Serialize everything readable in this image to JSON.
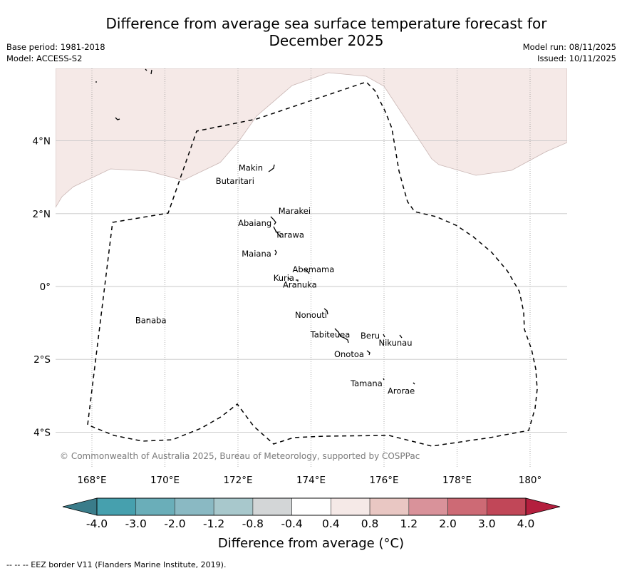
{
  "header": {
    "title_line1": "Difference from average sea surface temperature forecast for",
    "title_line2": "December 2025",
    "base_period": "Base period: 1981-2018",
    "model": "Model: ACCESS-S2",
    "model_run": "Model run: 08/11/2025",
    "issued": "Issued: 10/11/2025"
  },
  "map": {
    "lon_ticks": [
      "168°E",
      "170°E",
      "172°E",
      "174°E",
      "176°E",
      "178°E",
      "180°"
    ],
    "lat_ticks": [
      "4°N",
      "2°N",
      "0°",
      "2°S",
      "4°S"
    ],
    "copyright": "© Commonwealth of Australia 2025, Bureau of Meteorology, supported by COSPPac",
    "anomaly_region_color": "#f5e9e7",
    "anomaly_region_class": "0.4 to 0.8",
    "islands": [
      {
        "name": "Makin",
        "lon": 172.7,
        "lat": 3.2
      },
      {
        "name": "Butaritari",
        "lon": 172.6,
        "lat": 2.9
      },
      {
        "name": "Marakei",
        "lon": 173.4,
        "lat": 2.0
      },
      {
        "name": "Abaiang",
        "lon": 172.9,
        "lat": 1.7
      },
      {
        "name": "Tarawa",
        "lon": 173.2,
        "lat": 1.4
      },
      {
        "name": "Maiana",
        "lon": 173.0,
        "lat": 0.9
      },
      {
        "name": "Abemama",
        "lon": 174.0,
        "lat": 0.35
      },
      {
        "name": "Kuria",
        "lon": 173.4,
        "lat": 0.2
      },
      {
        "name": "Aranuka",
        "lon": 173.6,
        "lat": 0.15
      },
      {
        "name": "Banaba",
        "lon": 169.5,
        "lat": -0.85
      },
      {
        "name": "Nonouti",
        "lon": 174.4,
        "lat": -0.7
      },
      {
        "name": "Tabiteuea",
        "lon": 174.9,
        "lat": -1.3
      },
      {
        "name": "Beru",
        "lon": 176.0,
        "lat": -1.35
      },
      {
        "name": "Nikunau",
        "lon": 176.4,
        "lat": -1.35
      },
      {
        "name": "Onotoa",
        "lon": 175.55,
        "lat": -1.8
      },
      {
        "name": "Tamana",
        "lon": 176.0,
        "lat": -2.5
      },
      {
        "name": "Arorae",
        "lon": 176.8,
        "lat": -2.65
      }
    ]
  },
  "colorbar": {
    "title": "Difference from average (°C)",
    "ticks": [
      "-4.0",
      "-3.0",
      "-2.0",
      "-1.2",
      "-0.8",
      "-0.4",
      "0.4",
      "0.8",
      "1.2",
      "2.0",
      "3.0",
      "4.0"
    ],
    "under_color": "#3a7c8a",
    "over_color": "#b41f3e",
    "bins": [
      {
        "range": "-4.0 to -3.0",
        "color": "#46a0ae"
      },
      {
        "range": "-3.0 to -2.0",
        "color": "#6aaeb9"
      },
      {
        "range": "-2.0 to -1.2",
        "color": "#8ab9c3"
      },
      {
        "range": "-1.2 to -0.8",
        "color": "#a8c8cc"
      },
      {
        "range": "-0.8 to -0.4",
        "color": "#d3d6d7"
      },
      {
        "range": "-0.4 to 0.4",
        "color": "#ffffff"
      },
      {
        "range": "0.4 to 0.8",
        "color": "#f5e9e7"
      },
      {
        "range": "0.8 to 1.2",
        "color": "#e9c7c3"
      },
      {
        "range": "1.2 to 2.0",
        "color": "#d9929a"
      },
      {
        "range": "2.0 to 3.0",
        "color": "#cd6a75"
      },
      {
        "range": "3.0 to 4.0",
        "color": "#c14758"
      }
    ]
  },
  "footer": {
    "eez_legend": "--  --  -- EEZ border V11 (Flanders Marine Institute, 2019)."
  }
}
